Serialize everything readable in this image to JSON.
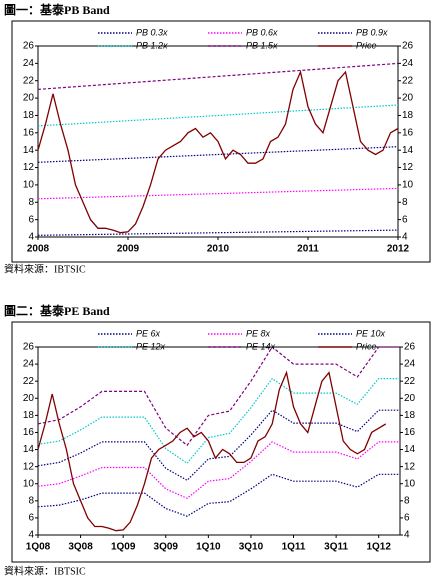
{
  "chart_data": [
    {
      "type": "line",
      "title": "圖一：基泰PB Band",
      "source": "資料來源：IBTSIC",
      "xlim": [
        2008,
        2012
      ],
      "xticks": [
        2008,
        2009,
        2010,
        2011,
        2012
      ],
      "ylim": [
        4,
        26
      ],
      "yticks": [
        4,
        6,
        8,
        10,
        12,
        14,
        16,
        18,
        20,
        22,
        24,
        26
      ],
      "y2lim": [
        4,
        26
      ],
      "y2ticks": [
        4,
        6,
        8,
        10,
        12,
        14,
        16,
        18,
        20,
        22,
        24,
        26
      ],
      "series": [
        {
          "name": "PB 0.3x",
          "color": "#000080",
          "style": "dotted",
          "x": [
            2008,
            2009,
            2010,
            2011,
            2012
          ],
          "values": [
            4.2,
            4.35,
            4.5,
            4.65,
            4.8
          ]
        },
        {
          "name": "PB 0.6x",
          "color": "#ff00ff",
          "style": "dotted",
          "x": [
            2008,
            2009,
            2010,
            2011,
            2012
          ],
          "values": [
            8.4,
            8.7,
            9.0,
            9.3,
            9.6
          ]
        },
        {
          "name": "PB 0.9x",
          "color": "#000080",
          "style": "dotted",
          "x": [
            2008,
            2009,
            2010,
            2011,
            2012
          ],
          "values": [
            12.6,
            13.05,
            13.5,
            13.95,
            14.4
          ]
        },
        {
          "name": "PB 1.2x",
          "color": "#00c8c8",
          "style": "dotted",
          "x": [
            2008,
            2009,
            2010,
            2011,
            2012
          ],
          "values": [
            16.8,
            17.4,
            18.0,
            18.6,
            19.2
          ]
        },
        {
          "name": "PB 1.5x",
          "color": "#800080",
          "style": "dashed",
          "x": [
            2008,
            2009,
            2010,
            2011,
            2012
          ],
          "values": [
            21.0,
            21.75,
            22.5,
            23.25,
            24.0
          ]
        },
        {
          "name": "Price",
          "color": "#800000",
          "style": "solid",
          "x": [
            2008.0,
            2008.083,
            2008.167,
            2008.25,
            2008.333,
            2008.417,
            2008.5,
            2008.583,
            2008.667,
            2008.75,
            2008.833,
            2008.917,
            2009.0,
            2009.083,
            2009.167,
            2009.25,
            2009.333,
            2009.417,
            2009.5,
            2009.583,
            2009.667,
            2009.75,
            2009.833,
            2009.917,
            2010.0,
            2010.083,
            2010.167,
            2010.25,
            2010.333,
            2010.417,
            2010.5,
            2010.583,
            2010.667,
            2010.75,
            2010.833,
            2010.917,
            2011.0,
            2011.083,
            2011.167,
            2011.25,
            2011.333,
            2011.417,
            2011.5,
            2011.583,
            2011.667,
            2011.75,
            2011.833,
            2011.917,
            2012.0
          ],
          "values": [
            14,
            17,
            20.5,
            17,
            14,
            10,
            8,
            6,
            5,
            5,
            4.8,
            4.5,
            4.6,
            5.5,
            7.5,
            10,
            13,
            14,
            14.5,
            15,
            16,
            16.5,
            15.5,
            16,
            15,
            13,
            14,
            13.5,
            12.5,
            12.5,
            13,
            15,
            15.5,
            17,
            21,
            23,
            19,
            17,
            16,
            19,
            22,
            23,
            19,
            15,
            14,
            13.5,
            14,
            16,
            16.5
          ]
        }
      ]
    },
    {
      "type": "line",
      "title": "圖二：基泰PE Band",
      "source": "資料來源：IBTSIC",
      "xlim": [
        2008,
        2012.25
      ],
      "xticks": [
        {
          "value": 2008,
          "label": "1Q08"
        },
        {
          "value": 2008.5,
          "label": "3Q08"
        },
        {
          "value": 2009,
          "label": "1Q09"
        },
        {
          "value": 2009.5,
          "label": "3Q09"
        },
        {
          "value": 2010,
          "label": "1Q10"
        },
        {
          "value": 2010.5,
          "label": "3Q10"
        },
        {
          "value": 2011,
          "label": "1Q11"
        },
        {
          "value": 2011.5,
          "label": "3Q11"
        },
        {
          "value": 2012,
          "label": "1Q12"
        }
      ],
      "ylim": [
        4,
        26
      ],
      "yticks": [
        4,
        6,
        8,
        10,
        12,
        14,
        16,
        18,
        20,
        22,
        24,
        26
      ],
      "y2lim": [
        4,
        26
      ],
      "y2ticks": [
        4,
        6,
        8,
        10,
        12,
        14,
        16,
        18,
        20,
        22,
        24,
        26
      ],
      "series": [
        {
          "name": "PE 6x",
          "color": "#000080",
          "style": "dotted",
          "x": [
            2008,
            2008.25,
            2008.5,
            2008.75,
            2009,
            2009.25,
            2009.5,
            2009.75,
            2010,
            2010.25,
            2010.5,
            2010.75,
            2011,
            2011.25,
            2011.5,
            2011.75,
            2012,
            2012.25
          ],
          "values": [
            7.3,
            7.5,
            8.1,
            8.9,
            8.9,
            8.9,
            7.1,
            6.2,
            7.7,
            7.9,
            9.4,
            11.1,
            10.3,
            10.3,
            10.3,
            9.6,
            11.1,
            11.1
          ]
        },
        {
          "name": "PE 8x",
          "color": "#ff00ff",
          "style": "dotted",
          "x": [
            2008,
            2008.25,
            2008.5,
            2008.75,
            2009,
            2009.25,
            2009.5,
            2009.75,
            2010,
            2010.25,
            2010.5,
            2010.75,
            2011,
            2011.25,
            2011.5,
            2011.75,
            2012,
            2012.25
          ],
          "values": [
            9.7,
            10,
            10.9,
            11.9,
            11.9,
            11.9,
            9.4,
            8.3,
            10.3,
            10.6,
            12.6,
            14.9,
            13.7,
            13.7,
            13.7,
            12.9,
            14.9,
            14.9
          ]
        },
        {
          "name": "PE 10x",
          "color": "#000080",
          "style": "dotted",
          "x": [
            2008,
            2008.25,
            2008.5,
            2008.75,
            2009,
            2009.25,
            2009.5,
            2009.75,
            2010,
            2010.25,
            2010.5,
            2010.75,
            2011,
            2011.25,
            2011.5,
            2011.75,
            2012,
            2012.25
          ],
          "values": [
            12.1,
            12.5,
            13.6,
            14.9,
            14.9,
            14.9,
            11.8,
            10.4,
            12.9,
            13.2,
            15.7,
            18.6,
            17.1,
            17.1,
            17.1,
            16.1,
            18.6,
            18.6
          ]
        },
        {
          "name": "PE 12x",
          "color": "#00c8c8",
          "style": "dotted",
          "x": [
            2008,
            2008.25,
            2008.5,
            2008.75,
            2009,
            2009.25,
            2009.5,
            2009.75,
            2010,
            2010.25,
            2010.5,
            2010.75,
            2011,
            2011.25,
            2011.5,
            2011.75,
            2012,
            2012.25
          ],
          "values": [
            14.6,
            15,
            16.3,
            17.8,
            17.8,
            17.8,
            14.1,
            12.4,
            15.4,
            15.9,
            18.9,
            22.3,
            20.6,
            20.6,
            20.6,
            19.3,
            22.3,
            22.3
          ]
        },
        {
          "name": "PE 14x",
          "color": "#800080",
          "style": "dashed",
          "x": [
            2008,
            2008.25,
            2008.5,
            2008.75,
            2009,
            2009.25,
            2009.5,
            2009.75,
            2010,
            2010.25,
            2010.5,
            2010.75,
            2011,
            2011.25,
            2011.5,
            2011.75,
            2012,
            2012.25
          ],
          "values": [
            17,
            17.5,
            19,
            20.8,
            20.8,
            20.8,
            16.5,
            14.5,
            18,
            18.5,
            22,
            26,
            24,
            24,
            24,
            22.5,
            26,
            26
          ]
        },
        {
          "name": "Price",
          "color": "#800000",
          "style": "solid",
          "x": [
            2008.0,
            2008.083,
            2008.167,
            2008.25,
            2008.333,
            2008.417,
            2008.5,
            2008.583,
            2008.667,
            2008.75,
            2008.833,
            2008.917,
            2009.0,
            2009.083,
            2009.167,
            2009.25,
            2009.333,
            2009.417,
            2009.5,
            2009.583,
            2009.667,
            2009.75,
            2009.833,
            2009.917,
            2010.0,
            2010.083,
            2010.167,
            2010.25,
            2010.333,
            2010.417,
            2010.5,
            2010.583,
            2010.667,
            2010.75,
            2010.833,
            2010.917,
            2011.0,
            2011.083,
            2011.167,
            2011.25,
            2011.333,
            2011.417,
            2011.5,
            2011.583,
            2011.667,
            2011.75,
            2011.833,
            2011.917,
            2012.0,
            2012.083
          ],
          "values": [
            14,
            17,
            20.5,
            17,
            14,
            10,
            8,
            6,
            5,
            5,
            4.8,
            4.5,
            4.6,
            5.5,
            7.5,
            10,
            13,
            14,
            14.5,
            15,
            16,
            16.5,
            15.5,
            16,
            15,
            13,
            14,
            13.5,
            12.5,
            12.5,
            13,
            15,
            15.5,
            17,
            21,
            23,
            19,
            17,
            16,
            19,
            22,
            23,
            19,
            15,
            14,
            13.5,
            14,
            16,
            16.5,
            17
          ]
        }
      ]
    }
  ]
}
